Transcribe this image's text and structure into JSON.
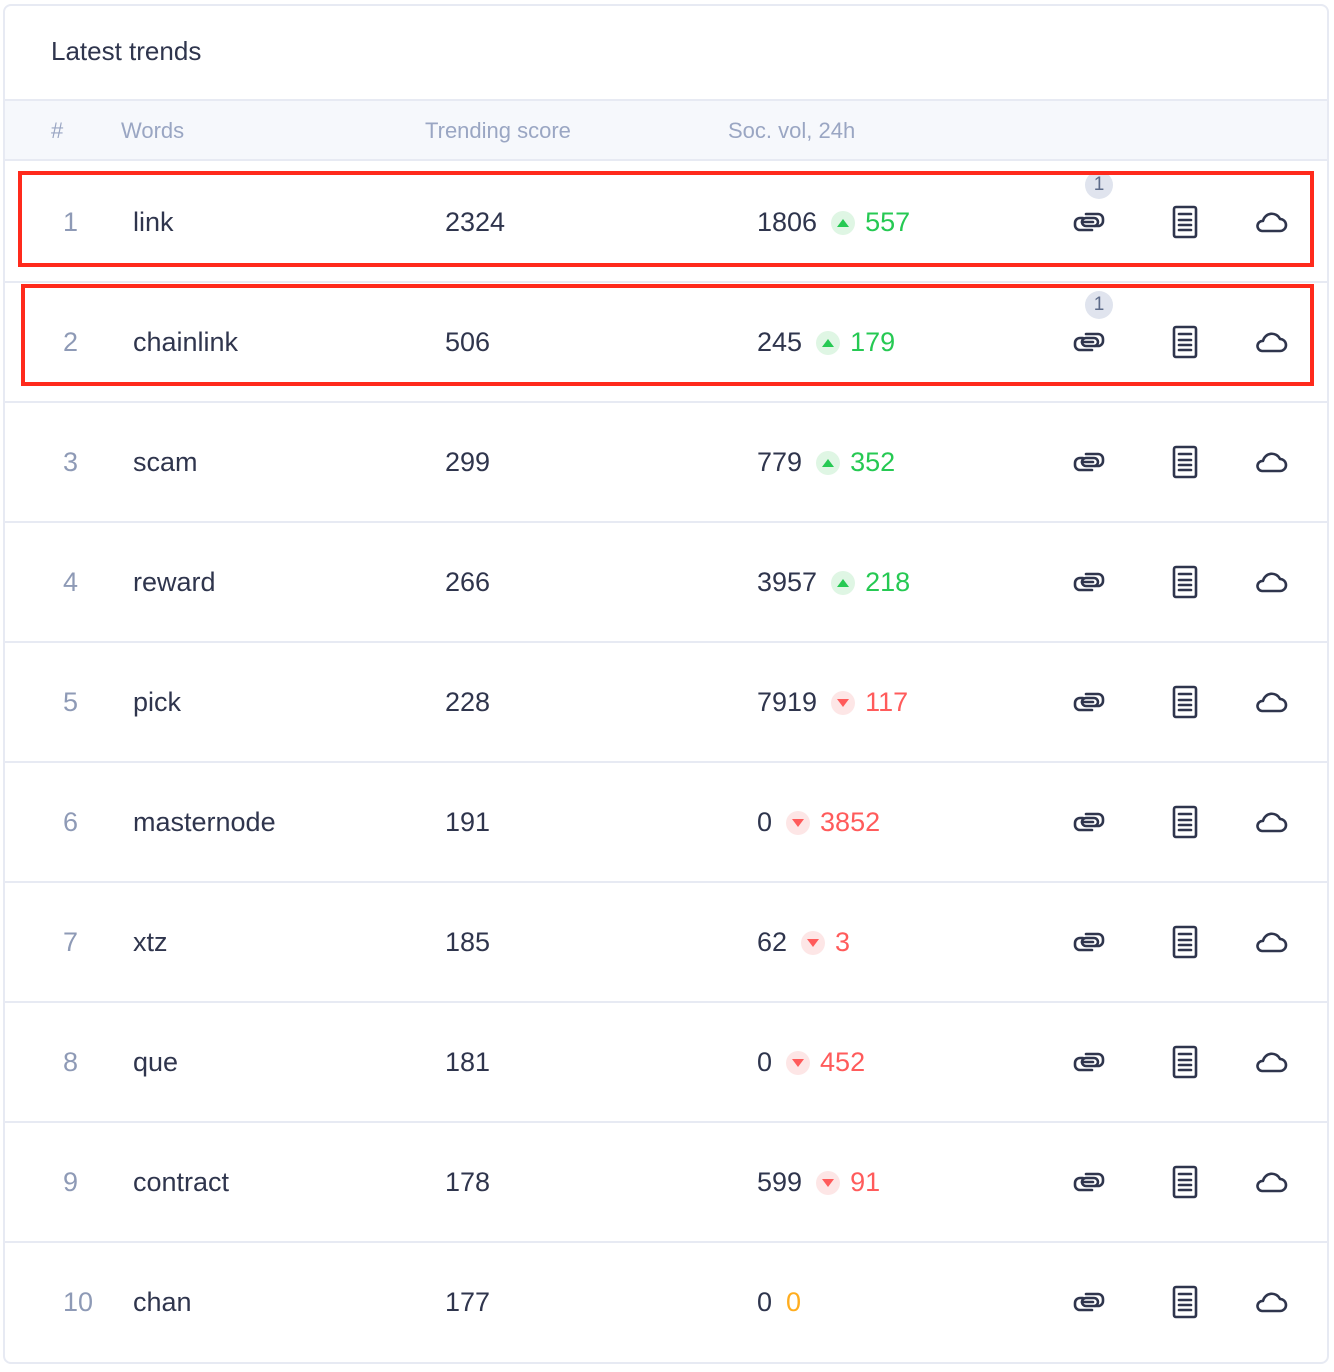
{
  "title": "Latest trends",
  "columns": {
    "rank": "#",
    "word": "Words",
    "score": "Trending score",
    "volume": "Soc. vol, 24h"
  },
  "colors": {
    "up": "#26c953",
    "down": "#ff5b5b",
    "flat": "#ffad1f",
    "highlight": "#ff2a1c"
  },
  "icons": [
    "connected-words-icon",
    "news-icon",
    "word-cloud-icon"
  ],
  "rows": [
    {
      "rank": "1",
      "word": "link",
      "score": "2324",
      "volume": "1806",
      "change": "557",
      "direction": "up",
      "linked_count": "1"
    },
    {
      "rank": "2",
      "word": "chainlink",
      "score": "506",
      "volume": "245",
      "change": "179",
      "direction": "up",
      "linked_count": "1"
    },
    {
      "rank": "3",
      "word": "scam",
      "score": "299",
      "volume": "779",
      "change": "352",
      "direction": "up"
    },
    {
      "rank": "4",
      "word": "reward",
      "score": "266",
      "volume": "3957",
      "change": "218",
      "direction": "up"
    },
    {
      "rank": "5",
      "word": "pick",
      "score": "228",
      "volume": "7919",
      "change": "117",
      "direction": "down"
    },
    {
      "rank": "6",
      "word": "masternode",
      "score": "191",
      "volume": "0",
      "change": "3852",
      "direction": "down"
    },
    {
      "rank": "7",
      "word": "xtz",
      "score": "185",
      "volume": "62",
      "change": "3",
      "direction": "down"
    },
    {
      "rank": "8",
      "word": "que",
      "score": "181",
      "volume": "0",
      "change": "452",
      "direction": "down"
    },
    {
      "rank": "9",
      "word": "contract",
      "score": "178",
      "volume": "599",
      "change": "91",
      "direction": "down"
    },
    {
      "rank": "10",
      "word": "chan",
      "score": "177",
      "volume": "0",
      "change": "0",
      "direction": "flat"
    }
  ]
}
